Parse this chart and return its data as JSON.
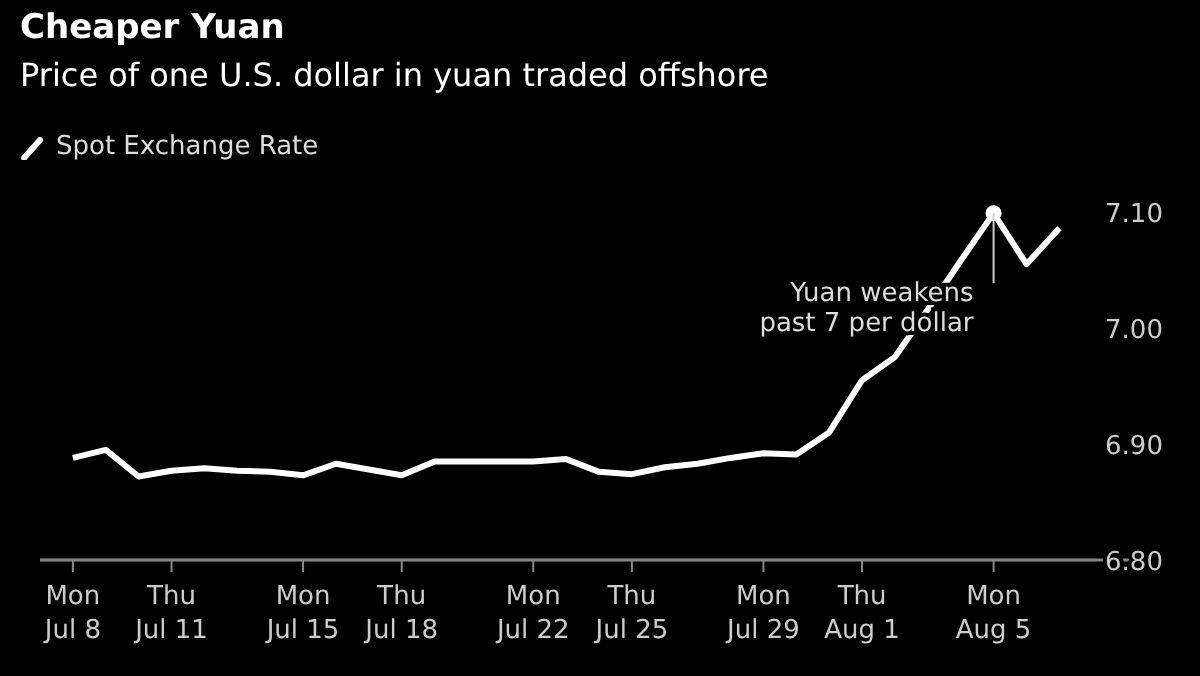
{
  "chart_data": {
    "type": "line",
    "title": "Cheaper Yuan",
    "subtitle": "Price of one U.S. dollar in yuan traded offshore",
    "x": [
      "--07-08",
      "--07-09",
      "--07-10",
      "--07-11",
      "--07-12",
      "--07-13",
      "--07-14",
      "--07-15",
      "--07-16",
      "--07-17",
      "--07-18",
      "--07-19",
      "--07-20",
      "--07-21",
      "--07-22",
      "--07-23",
      "--07-24",
      "--07-25",
      "--07-26",
      "--07-27",
      "--07-28",
      "--07-29",
      "--07-30",
      "--07-31",
      "--08-01",
      "--08-02",
      "--08-03",
      "--08-04",
      "--08-05",
      "--08-06",
      "--08-07"
    ],
    "series": [
      {
        "name": "Spot Exchange Rate",
        "color": "#ffffff",
        "values": [
          6.888,
          6.895,
          6.872,
          6.877,
          6.879,
          6.877,
          6.876,
          6.873,
          6.883,
          6.878,
          6.873,
          6.885,
          6.885,
          6.885,
          6.885,
          6.887,
          6.876,
          6.874,
          6.88,
          6.883,
          6.888,
          6.892,
          6.891,
          6.91,
          6.955,
          6.975,
          7.016,
          7.058,
          7.099,
          7.055,
          7.086
        ]
      }
    ],
    "xlim": [
      "--07-07",
      "--08-10"
    ],
    "xticks": [
      {
        "value": "--07-08",
        "label": "Mon\nJul 8"
      },
      {
        "value": "--07-11",
        "label": "Thu\nJul 11"
      },
      {
        "value": "--07-15",
        "label": "Mon\nJul 15"
      },
      {
        "value": "--07-18",
        "label": "Thu\nJul 18"
      },
      {
        "value": "--07-22",
        "label": "Mon\nJul 22"
      },
      {
        "value": "--07-25",
        "label": "Thu\nJul 25"
      },
      {
        "value": "--07-29",
        "label": "Mon\nJul 29"
      },
      {
        "value": "--08-01",
        "label": "Thu\nAug 1"
      },
      {
        "value": "--08-05",
        "label": "Mon\nAug 5"
      }
    ],
    "ylim": [
      6.8,
      7.1
    ],
    "yticks": [
      {
        "value": 6.8,
        "label": "6.80"
      },
      {
        "value": 6.9,
        "label": "6.90"
      },
      {
        "value": 7.0,
        "label": "7.00"
      },
      {
        "value": 7.1,
        "label": "7.10"
      }
    ],
    "annotations": [
      {
        "text": "Yuan weakens past 7 per dollar",
        "x": "--08-05",
        "y": 7.099
      }
    ],
    "legend": "top left",
    "grid": false,
    "marker": "none",
    "line_style": "solid"
  }
}
